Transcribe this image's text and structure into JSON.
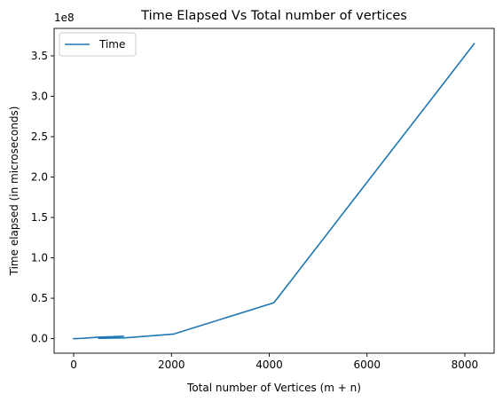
{
  "chart_data": {
    "type": "line",
    "title": "Time Elapsed Vs Total number of vertices",
    "xlabel": "Total number of Vertices (m + n)",
    "ylabel": "Time elapsed (in microseconds)",
    "y_offset_label": "1e8",
    "xlim": [
      -400,
      8600
    ],
    "ylim": [
      -18000000,
      384000000
    ],
    "xticks": [
      0,
      2000,
      4000,
      6000,
      8000
    ],
    "xtick_labels": [
      "0",
      "2000",
      "4000",
      "6000",
      "8000"
    ],
    "yticks": [
      0,
      50000000,
      100000000,
      150000000,
      200000000,
      250000000,
      300000000,
      350000000
    ],
    "ytick_labels": [
      "0.0",
      "0.5",
      "1.0",
      "1.5",
      "2.0",
      "2.5",
      "3.0",
      "3.5"
    ],
    "grid": false,
    "legend_position": "top-left",
    "series": [
      {
        "name": "Time",
        "color": "#1f77b4",
        "x": [
          0,
          16,
          32,
          64,
          128,
          256,
          512,
          1024,
          512,
          1024,
          2048,
          4096,
          8192
        ],
        "y": [
          0,
          10000,
          30000,
          90000,
          250000,
          700000,
          1800000,
          3000000,
          500000,
          900000,
          5700000,
          44500000,
          365000000
        ]
      }
    ]
  }
}
